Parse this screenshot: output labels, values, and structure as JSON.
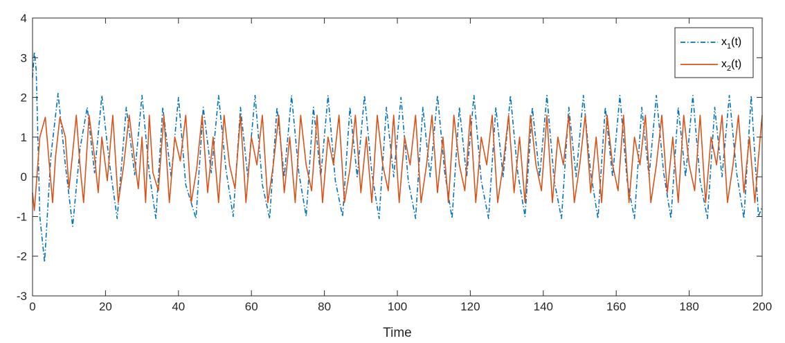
{
  "chart_data": {
    "type": "line",
    "title": "",
    "xlabel": "Time",
    "ylabel": "",
    "xlim": [
      0,
      200
    ],
    "ylim": [
      -3,
      4
    ],
    "xticks": [
      0,
      20,
      40,
      60,
      80,
      100,
      120,
      140,
      160,
      180,
      200
    ],
    "yticks": [
      -3,
      -2,
      -1,
      0,
      1,
      2,
      3,
      4
    ],
    "grid": false,
    "legend_position": "top-right",
    "series": [
      {
        "name_main": "x",
        "name_sub": "1",
        "name_suffix": "(t)",
        "color": "#0072BD",
        "line_style": "dash-dot",
        "x": [
          0,
          0.5,
          1.0,
          2.0,
          3.3,
          5.0,
          7.0,
          9.0,
          11.0,
          13.0,
          15.0,
          17.0,
          19.0,
          21.0,
          23.2,
          25.7,
          28.0,
          30.0,
          32.0,
          33.8,
          35.7,
          38.0,
          40.0,
          42.0,
          44.8,
          46.8,
          49.0,
          51.0,
          53.0,
          55.0,
          57.0,
          59.0,
          61.0,
          63.0,
          65.0,
          67.0,
          69.0,
          71.0,
          73.0,
          75.0,
          77.0,
          79.0,
          81.0,
          83.0,
          85.0,
          87.0,
          89.0,
          91.0,
          93.0,
          95.0,
          97.0,
          99.0,
          101.0,
          103.0,
          105.0,
          107.0,
          109.0,
          111.0,
          113.0,
          115.0,
          117.0,
          119.0,
          121.0,
          123.0,
          125.0,
          127.0,
          129.0,
          131.0,
          133.0,
          135.0,
          137.0,
          139.0,
          141.0,
          143.0,
          145.0,
          147.0,
          149.0,
          151.0,
          153.0,
          155.0,
          157.0,
          159.0,
          161.0,
          163.0,
          165.0,
          167.0,
          169.0,
          171.0,
          173.0,
          175.0,
          177.0,
          179.0,
          181.0,
          183.0,
          185.0,
          187.0,
          189.0,
          191.0,
          193.0,
          195.0,
          197.0,
          199.0,
          200.0
        ],
        "y": [
          2.5,
          3.15,
          2.7,
          -1.0,
          -2.15,
          0.5,
          2.1,
          0.3,
          -1.25,
          0.7,
          1.75,
          0.1,
          2.05,
          0.4,
          -1.05,
          1.75,
          0.05,
          2.05,
          0.1,
          -1.05,
          1.75,
          0.0,
          2.0,
          -0.2,
          -1.05,
          1.75,
          0.1,
          2.05,
          0.2,
          -1.0,
          1.75,
          0.0,
          2.05,
          -0.2,
          -1.05,
          1.75,
          0.0,
          2.05,
          0.1,
          -1.0,
          1.75,
          0.0,
          2.05,
          -0.1,
          -1.0,
          1.75,
          0.0,
          2.05,
          0.1,
          -1.05,
          1.75,
          0.0,
          2.0,
          -0.1,
          -1.05,
          1.75,
          0.0,
          2.05,
          0.1,
          -1.05,
          1.75,
          0.0,
          2.05,
          -0.1,
          -1.05,
          1.75,
          0.0,
          2.05,
          0.1,
          -1.0,
          1.75,
          0.0,
          2.05,
          -0.1,
          -1.05,
          1.75,
          0.0,
          2.05,
          0.1,
          -1.05,
          1.75,
          0.0,
          2.05,
          -0.1,
          -1.05,
          1.75,
          0.0,
          2.05,
          0.1,
          -1.05,
          1.75,
          0.0,
          2.05,
          -0.1,
          -1.05,
          1.75,
          0.0,
          2.05,
          0.1,
          -1.05,
          2.05,
          -1.0,
          -0.75
        ]
      },
      {
        "name_main": "x",
        "name_sub": "2",
        "name_suffix": "(t)",
        "color": "#D95319",
        "line_style": "solid",
        "x": [
          0,
          0.5,
          1.2,
          2.0,
          3.5,
          5.5,
          6.3,
          7.5,
          9.0,
          10.0,
          11.0,
          12.0,
          13.0,
          14.0,
          15.5,
          17.0,
          18.0,
          19.0,
          20.5,
          22.0,
          23.5,
          25.0,
          26.5,
          28.0,
          29.0,
          30.0,
          31.0,
          32.0,
          33.0,
          34.5,
          36.0,
          37.5,
          39.0,
          40.5,
          42.0,
          43.5,
          45.0,
          46.5,
          48.0,
          49.5,
          51.0,
          52.5,
          54.0,
          55.5,
          57.0,
          58.5,
          60.0,
          61.5,
          63.0,
          64.5,
          66.0,
          67.5,
          69.0,
          70.5,
          72.0,
          73.5,
          75.0,
          76.5,
          78.0,
          79.5,
          81.0,
          82.5,
          84.0,
          85.5,
          87.0,
          88.5,
          90.0,
          91.5,
          93.0,
          94.5,
          96.0,
          97.5,
          99.0,
          100.5,
          102.0,
          103.5,
          105.0,
          106.5,
          108.0,
          109.5,
          111.0,
          112.5,
          114.0,
          115.5,
          117.0,
          118.5,
          120.0,
          121.5,
          123.0,
          124.5,
          126.0,
          127.5,
          129.0,
          130.5,
          132.0,
          133.5,
          135.0,
          136.5,
          138.0,
          139.5,
          141.0,
          142.5,
          144.0,
          145.5,
          147.0,
          148.5,
          150.0,
          151.5,
          153.0,
          154.5,
          156.0,
          157.5,
          159.0,
          160.5,
          162.0,
          163.5,
          165.0,
          166.5,
          168.0,
          169.5,
          171.0,
          172.5,
          174.0,
          175.5,
          177.0,
          178.5,
          180.0,
          181.5,
          183.0,
          184.5,
          186.0,
          187.5,
          189.0,
          190.5,
          192.0,
          193.5,
          195.0,
          196.5,
          198.0,
          199.0,
          200.0
        ],
        "y": [
          -0.4,
          -0.85,
          0.0,
          1.0,
          1.5,
          -0.65,
          0.5,
          1.5,
          1.0,
          -0.3,
          0.6,
          1.55,
          0.3,
          -0.65,
          1.55,
          0.5,
          -0.4,
          1.0,
          -0.1,
          1.55,
          -0.65,
          0.3,
          1.55,
          0.4,
          -0.3,
          1.0,
          -0.65,
          1.55,
          0.1,
          -0.35,
          1.55,
          -0.65,
          1.0,
          0.4,
          1.55,
          -0.65,
          0.2,
          1.55,
          -0.4,
          1.0,
          -0.65,
          1.55,
          0.3,
          -0.3,
          1.55,
          -0.65,
          1.0,
          0.3,
          1.55,
          -0.65,
          0.3,
          1.55,
          -0.4,
          1.0,
          -0.65,
          1.55,
          0.3,
          -0.35,
          1.55,
          -0.65,
          1.0,
          0.3,
          1.55,
          -0.65,
          0.2,
          1.55,
          -0.4,
          1.0,
          -0.65,
          1.55,
          0.3,
          -0.35,
          1.55,
          -0.65,
          1.0,
          0.3,
          1.55,
          -0.65,
          0.3,
          1.55,
          -0.4,
          1.0,
          -0.65,
          1.55,
          0.3,
          -0.35,
          1.55,
          -0.65,
          1.0,
          0.3,
          1.55,
          -0.65,
          0.3,
          1.55,
          -0.4,
          1.0,
          -0.65,
          1.55,
          0.3,
          -0.35,
          1.55,
          -0.65,
          1.0,
          0.3,
          1.55,
          -0.65,
          0.3,
          1.55,
          -0.4,
          1.0,
          -0.65,
          1.55,
          0.3,
          -0.35,
          1.55,
          -0.65,
          1.0,
          0.3,
          1.55,
          -0.65,
          0.3,
          1.55,
          -0.4,
          1.0,
          -0.65,
          1.55,
          0.3,
          -0.35,
          1.55,
          -0.65,
          1.0,
          0.3,
          1.55,
          -0.65,
          0.3,
          1.55,
          -0.4,
          1.0,
          -0.65,
          0.5,
          1.55
        ]
      }
    ]
  }
}
